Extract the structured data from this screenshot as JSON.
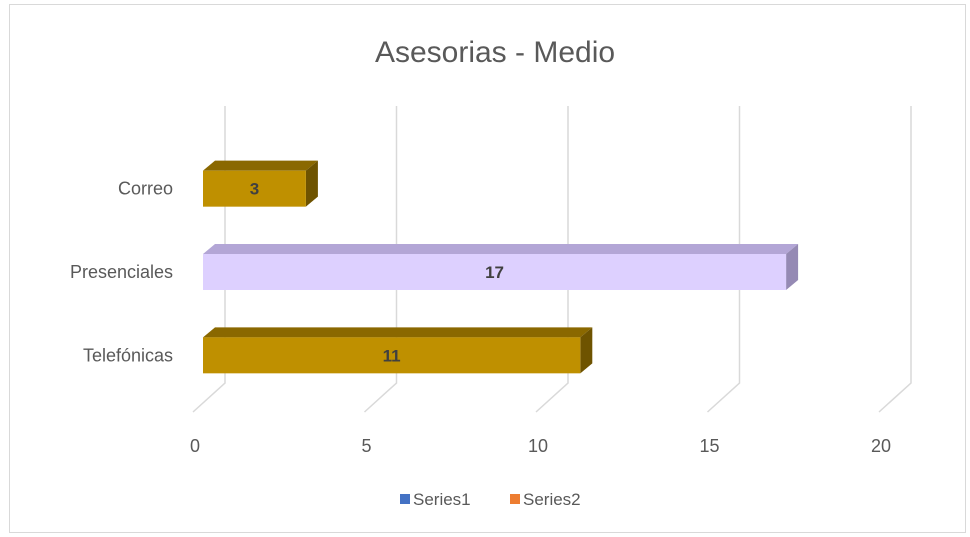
{
  "chart_data": {
    "type": "bar",
    "orientation": "horizontal",
    "title": "Asesorias - Medio",
    "xlabel": "",
    "ylabel": "",
    "categories": [
      "Telefónicas",
      "Presenciales",
      "Correo"
    ],
    "values": [
      11,
      17,
      3
    ],
    "data_labels": [
      "11",
      "17",
      "3"
    ],
    "bar_colors": [
      "#bf9000",
      "#ddd0ff",
      "#bf9000"
    ],
    "bar_top_colors": [
      "#8a6800",
      "#b3a6d6",
      "#8a6800"
    ],
    "bar_side_colors": [
      "#6e5300",
      "#958ab4",
      "#6e5300"
    ],
    "xlim": [
      0,
      20
    ],
    "xticks": [
      "0",
      "5",
      "10",
      "15",
      "20"
    ],
    "grid": true,
    "legend_position": "bottom",
    "legend": [
      {
        "name": "Series1",
        "color": "#4472c4"
      },
      {
        "name": "Series2",
        "color": "#ed7d31"
      }
    ]
  }
}
